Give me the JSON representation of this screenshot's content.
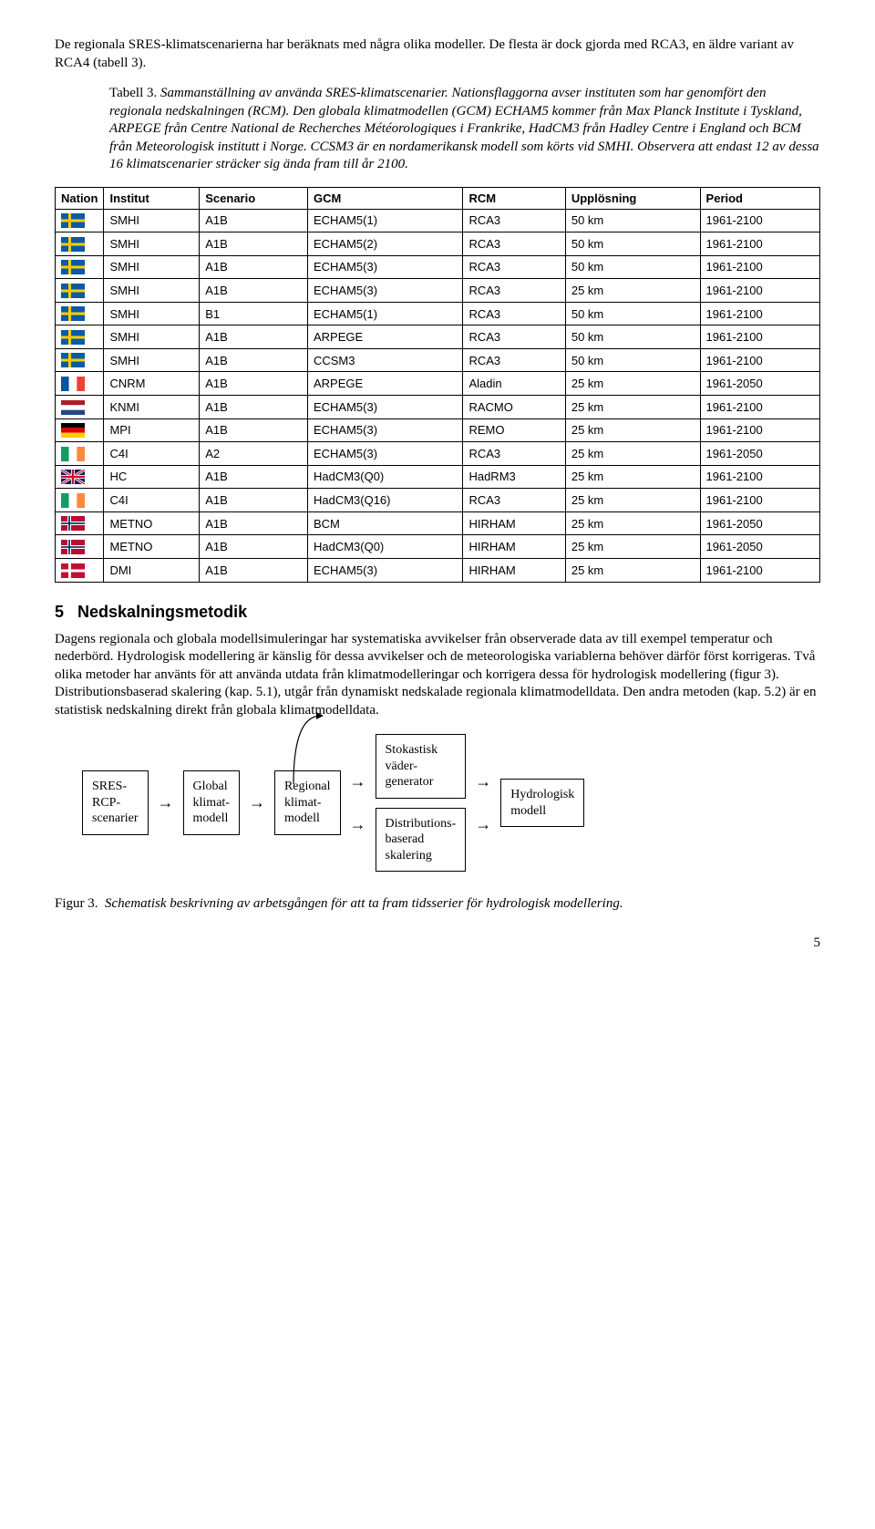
{
  "intro": "De regionala SRES-klimatscenarierna har beräknats med några olika modeller. De flesta är dock gjorda med RCA3, en äldre variant av RCA4 (tabell 3).",
  "table_caption_label": "Tabell 3.",
  "table_caption_body": "Sammanställning av använda SRES-klimatscenarier. Nationsflaggorna avser instituten som har genomfört den regionala nedskalningen (RCM). Den globala klimatmodellen (GCM) ECHAM5 kommer från Max Planck Institute i Tyskland, ARPEGE från Centre National de Recherches Météorologiques i Frankrike, HadCM3 från Hadley Centre i England och BCM från Meteorologisk institutt i Norge. CCSM3 är en nordamerikansk modell som körts vid SMHI. Observera att endast 12 av dessa 16 klimatscenarier sträcker sig ända fram till år 2100.",
  "table": {
    "headers": [
      "Nation",
      "Institut",
      "Scenario",
      "GCM",
      "RCM",
      "Upplösning",
      "Period"
    ],
    "rows": [
      {
        "flag": "se",
        "institut": "SMHI",
        "scenario": "A1B",
        "gcm": "ECHAM5(1)",
        "rcm": "RCA3",
        "upp": "50 km",
        "period": "1961-2100"
      },
      {
        "flag": "se",
        "institut": "SMHI",
        "scenario": "A1B",
        "gcm": "ECHAM5(2)",
        "rcm": "RCA3",
        "upp": "50 km",
        "period": "1961-2100"
      },
      {
        "flag": "se",
        "institut": "SMHI",
        "scenario": "A1B",
        "gcm": "ECHAM5(3)",
        "rcm": "RCA3",
        "upp": "50 km",
        "period": "1961-2100"
      },
      {
        "flag": "se",
        "institut": "SMHI",
        "scenario": "A1B",
        "gcm": "ECHAM5(3)",
        "rcm": "RCA3",
        "upp": "25 km",
        "period": "1961-2100"
      },
      {
        "flag": "se",
        "institut": "SMHI",
        "scenario": "B1",
        "gcm": "ECHAM5(1)",
        "rcm": "RCA3",
        "upp": "50 km",
        "period": "1961-2100"
      },
      {
        "flag": "se",
        "institut": "SMHI",
        "scenario": "A1B",
        "gcm": "ARPEGE",
        "rcm": "RCA3",
        "upp": "50 km",
        "period": "1961-2100"
      },
      {
        "flag": "se",
        "institut": "SMHI",
        "scenario": "A1B",
        "gcm": "CCSM3",
        "rcm": "RCA3",
        "upp": "50 km",
        "period": "1961-2100"
      },
      {
        "flag": "fr",
        "institut": "CNRM",
        "scenario": "A1B",
        "gcm": "ARPEGE",
        "rcm": "Aladin",
        "upp": "25 km",
        "period": "1961-2050"
      },
      {
        "flag": "nl",
        "institut": "KNMI",
        "scenario": "A1B",
        "gcm": "ECHAM5(3)",
        "rcm": "RACMO",
        "upp": "25 km",
        "period": "1961-2100"
      },
      {
        "flag": "de",
        "institut": "MPI",
        "scenario": "A1B",
        "gcm": "ECHAM5(3)",
        "rcm": "REMO",
        "upp": "25 km",
        "period": "1961-2100"
      },
      {
        "flag": "ie",
        "institut": "C4I",
        "scenario": "A2",
        "gcm": "ECHAM5(3)",
        "rcm": "RCA3",
        "upp": "25 km",
        "period": "1961-2050"
      },
      {
        "flag": "gb",
        "institut": "HC",
        "scenario": "A1B",
        "gcm": "HadCM3(Q0)",
        "rcm": "HadRM3",
        "upp": "25 km",
        "period": "1961-2100"
      },
      {
        "flag": "ie",
        "institut": "C4I",
        "scenario": "A1B",
        "gcm": "HadCM3(Q16)",
        "rcm": "RCA3",
        "upp": "25 km",
        "period": "1961-2100"
      },
      {
        "flag": "no",
        "institut": "METNO",
        "scenario": "A1B",
        "gcm": "BCM",
        "rcm": "HIRHAM",
        "upp": "25 km",
        "period": "1961-2050"
      },
      {
        "flag": "no",
        "institut": "METNO",
        "scenario": "A1B",
        "gcm": "HadCM3(Q0)",
        "rcm": "HIRHAM",
        "upp": "25 km",
        "period": "1961-2050"
      },
      {
        "flag": "dk",
        "institut": "DMI",
        "scenario": "A1B",
        "gcm": "ECHAM5(3)",
        "rcm": "HIRHAM",
        "upp": "25 km",
        "period": "1961-2100"
      }
    ]
  },
  "flag_colors": {
    "se_blue": "#0a5aa6",
    "se_yellow": "#fdcd00",
    "fr_blue": "#0055a4",
    "fr_red": "#ef4135",
    "nl_red": "#ae1c28",
    "nl_blue": "#21468b",
    "de_black": "#000000",
    "de_red": "#dd0000",
    "de_gold": "#ffce00",
    "ie_green": "#169b62",
    "ie_orange": "#ff883e",
    "gb_blue": "#012169",
    "gb_red": "#c8102e",
    "no_red": "#ba0c2f",
    "no_blue": "#00205b",
    "dk_red": "#c60c30",
    "white": "#ffffff"
  },
  "section_number": "5",
  "section_title": "Nedskalningsmetodik",
  "section_para": "Dagens regionala och globala modellsimuleringar har systematiska avvikelser från observerade data av till exempel temperatur och nederbörd. Hydrologisk modellering är känslig för dessa avvikelser och de meteorologiska variablerna behöver därför först korrigeras. Två olika metoder har använts för att använda utdata från klimatmodelleringar och korrigera dessa för hydrologisk modellering (figur 3). Distributionsbaserad skalering (kap. 5.1), utgår från dynamiskt nedskalade regionala klimatmodelldata. Den andra metoden (kap. 5.2) är en statistisk nedskalning direkt från globala klimatmodelldata.",
  "flow": {
    "box1": "SRES-\nRCP-\nscenarier",
    "box2": "Global\nklimat-\nmodell",
    "box3": "Regional\nklimat-\nmodell",
    "box4a": "Stokastisk\nväder-\ngenerator",
    "box4b": "Distributions-\nbaserad\nskalering",
    "box5": "Hydrologisk\nmodell"
  },
  "fig_caption_label": "Figur 3.",
  "fig_caption_body": "Schematisk beskrivning av arbetsgången för att ta fram tidsserier för hydrologisk modellering.",
  "page_number": "5"
}
